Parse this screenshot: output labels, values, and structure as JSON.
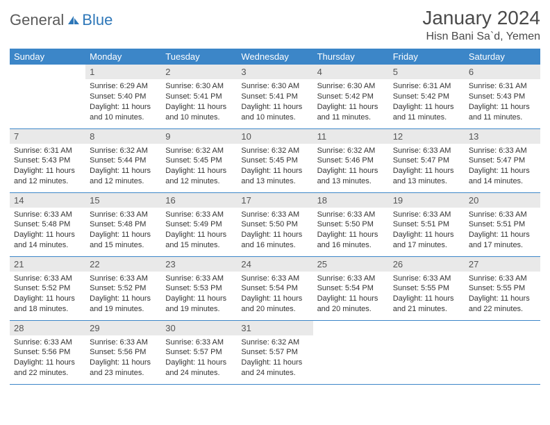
{
  "logo": {
    "text1": "General",
    "text2": "Blue"
  },
  "title": "January 2024",
  "location": "Hisn Bani Sa`d, Yemen",
  "colors": {
    "header_bg": "#3c86c8",
    "header_fg": "#ffffff",
    "daynum_bg": "#e9e9e9",
    "daynum_fg": "#555555",
    "border": "#3c86c8",
    "logo_gray": "#5a5a5a",
    "logo_blue": "#2e77b8"
  },
  "weekdays": [
    "Sunday",
    "Monday",
    "Tuesday",
    "Wednesday",
    "Thursday",
    "Friday",
    "Saturday"
  ],
  "startOffset": 1,
  "daysInMonth": 31,
  "days": {
    "1": {
      "sunrise": "6:29 AM",
      "sunset": "5:40 PM",
      "daylight": "11 hours and 10 minutes."
    },
    "2": {
      "sunrise": "6:30 AM",
      "sunset": "5:41 PM",
      "daylight": "11 hours and 10 minutes."
    },
    "3": {
      "sunrise": "6:30 AM",
      "sunset": "5:41 PM",
      "daylight": "11 hours and 10 minutes."
    },
    "4": {
      "sunrise": "6:30 AM",
      "sunset": "5:42 PM",
      "daylight": "11 hours and 11 minutes."
    },
    "5": {
      "sunrise": "6:31 AM",
      "sunset": "5:42 PM",
      "daylight": "11 hours and 11 minutes."
    },
    "6": {
      "sunrise": "6:31 AM",
      "sunset": "5:43 PM",
      "daylight": "11 hours and 11 minutes."
    },
    "7": {
      "sunrise": "6:31 AM",
      "sunset": "5:43 PM",
      "daylight": "11 hours and 12 minutes."
    },
    "8": {
      "sunrise": "6:32 AM",
      "sunset": "5:44 PM",
      "daylight": "11 hours and 12 minutes."
    },
    "9": {
      "sunrise": "6:32 AM",
      "sunset": "5:45 PM",
      "daylight": "11 hours and 12 minutes."
    },
    "10": {
      "sunrise": "6:32 AM",
      "sunset": "5:45 PM",
      "daylight": "11 hours and 13 minutes."
    },
    "11": {
      "sunrise": "6:32 AM",
      "sunset": "5:46 PM",
      "daylight": "11 hours and 13 minutes."
    },
    "12": {
      "sunrise": "6:33 AM",
      "sunset": "5:47 PM",
      "daylight": "11 hours and 13 minutes."
    },
    "13": {
      "sunrise": "6:33 AM",
      "sunset": "5:47 PM",
      "daylight": "11 hours and 14 minutes."
    },
    "14": {
      "sunrise": "6:33 AM",
      "sunset": "5:48 PM",
      "daylight": "11 hours and 14 minutes."
    },
    "15": {
      "sunrise": "6:33 AM",
      "sunset": "5:48 PM",
      "daylight": "11 hours and 15 minutes."
    },
    "16": {
      "sunrise": "6:33 AM",
      "sunset": "5:49 PM",
      "daylight": "11 hours and 15 minutes."
    },
    "17": {
      "sunrise": "6:33 AM",
      "sunset": "5:50 PM",
      "daylight": "11 hours and 16 minutes."
    },
    "18": {
      "sunrise": "6:33 AM",
      "sunset": "5:50 PM",
      "daylight": "11 hours and 16 minutes."
    },
    "19": {
      "sunrise": "6:33 AM",
      "sunset": "5:51 PM",
      "daylight": "11 hours and 17 minutes."
    },
    "20": {
      "sunrise": "6:33 AM",
      "sunset": "5:51 PM",
      "daylight": "11 hours and 17 minutes."
    },
    "21": {
      "sunrise": "6:33 AM",
      "sunset": "5:52 PM",
      "daylight": "11 hours and 18 minutes."
    },
    "22": {
      "sunrise": "6:33 AM",
      "sunset": "5:52 PM",
      "daylight": "11 hours and 19 minutes."
    },
    "23": {
      "sunrise": "6:33 AM",
      "sunset": "5:53 PM",
      "daylight": "11 hours and 19 minutes."
    },
    "24": {
      "sunrise": "6:33 AM",
      "sunset": "5:54 PM",
      "daylight": "11 hours and 20 minutes."
    },
    "25": {
      "sunrise": "6:33 AM",
      "sunset": "5:54 PM",
      "daylight": "11 hours and 20 minutes."
    },
    "26": {
      "sunrise": "6:33 AM",
      "sunset": "5:55 PM",
      "daylight": "11 hours and 21 minutes."
    },
    "27": {
      "sunrise": "6:33 AM",
      "sunset": "5:55 PM",
      "daylight": "11 hours and 22 minutes."
    },
    "28": {
      "sunrise": "6:33 AM",
      "sunset": "5:56 PM",
      "daylight": "11 hours and 22 minutes."
    },
    "29": {
      "sunrise": "6:33 AM",
      "sunset": "5:56 PM",
      "daylight": "11 hours and 23 minutes."
    },
    "30": {
      "sunrise": "6:33 AM",
      "sunset": "5:57 PM",
      "daylight": "11 hours and 24 minutes."
    },
    "31": {
      "sunrise": "6:32 AM",
      "sunset": "5:57 PM",
      "daylight": "11 hours and 24 minutes."
    }
  },
  "labels": {
    "sunrise": "Sunrise:",
    "sunset": "Sunset:",
    "daylight": "Daylight:"
  }
}
